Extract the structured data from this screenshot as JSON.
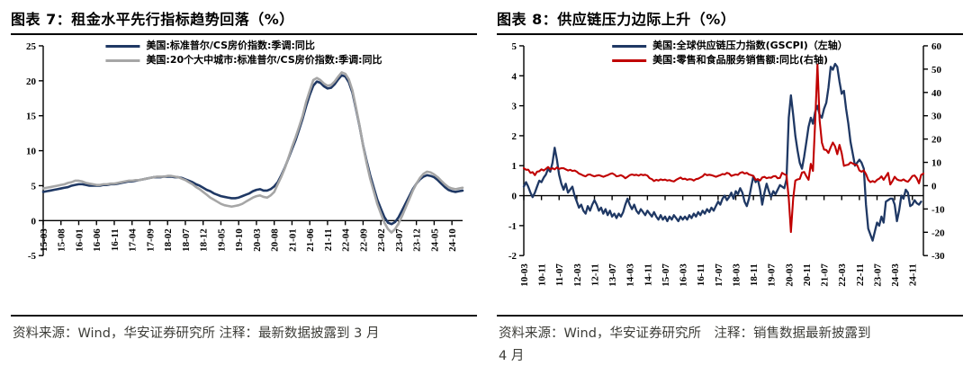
{
  "figure7": {
    "title": "图表 7：租金水平先行指标趋势回落（%）",
    "source_lines": [
      "资料来源：Wind，华安证券研究所  注释：最新数据披露到 3 月"
    ]
  },
  "figure8": {
    "title": "图表 8：供应链压力边际上升（%）",
    "source_lines": [
      "资料来源：Wind，华安证券研究所　注释：销售数据最新披露到",
      "4 月"
    ]
  },
  "chart_data": [
    {
      "type": "line",
      "title": "图表 7：租金水平先行指标趋势回落（%）",
      "x_start": "2015-03",
      "x_end": "2025-01",
      "freq": "monthly",
      "x_tick_every": 5,
      "x_tick_labels": [
        "15-03",
        "15-08",
        "16-01",
        "16-06",
        "16-11",
        "17-04",
        "17-09",
        "18-02",
        "18-07",
        "18-12",
        "19-05",
        "19-10",
        "20-03",
        "20-08",
        "21-01",
        "21-06",
        "21-11",
        "22-04",
        "22-09",
        "23-02",
        "23-07",
        "23-12",
        "24-05",
        "24-10"
      ],
      "left_axis": {
        "min": -5,
        "max": 25,
        "step": 5
      },
      "grid": false,
      "legend_position": "top-center",
      "series": [
        {
          "name": "美国:标准普尔/CS房价指数:季调:同比",
          "axis": "left",
          "color": "#1f3864",
          "values": [
            4.1,
            4.2,
            4.3,
            4.4,
            4.5,
            4.6,
            4.7,
            4.8,
            5.0,
            5.1,
            5.2,
            5.2,
            5.1,
            5.0,
            5.0,
            5.0,
            5.0,
            5.1,
            5.1,
            5.2,
            5.2,
            5.3,
            5.4,
            5.5,
            5.6,
            5.6,
            5.7,
            5.8,
            5.9,
            6.0,
            6.1,
            6.2,
            6.2,
            6.2,
            6.3,
            6.3,
            6.3,
            6.2,
            6.2,
            6.1,
            5.9,
            5.7,
            5.5,
            5.2,
            5.0,
            4.7,
            4.4,
            4.2,
            3.9,
            3.7,
            3.5,
            3.4,
            3.3,
            3.2,
            3.2,
            3.3,
            3.5,
            3.7,
            3.9,
            4.2,
            4.4,
            4.5,
            4.3,
            4.3,
            4.5,
            4.9,
            5.5,
            6.5,
            7.6,
            8.9,
            10.2,
            11.5,
            13.0,
            14.6,
            16.4,
            18.0,
            19.3,
            19.9,
            19.7,
            19.2,
            18.9,
            19.0,
            19.5,
            20.2,
            20.8,
            20.6,
            19.8,
            18.3,
            16.0,
            13.5,
            10.8,
            8.5,
            6.5,
            4.7,
            3.0,
            1.7,
            0.5,
            -0.3,
            -0.5,
            -0.2,
            0.5,
            1.5,
            2.5,
            3.5,
            4.5,
            5.3,
            5.9,
            6.3,
            6.5,
            6.4,
            6.2,
            5.8,
            5.3,
            4.8,
            4.4,
            4.2,
            4.1,
            4.2,
            4.3
          ]
        },
        {
          "name": "美国:20个大中城市:标准普尔/CS房价指数:季调:同比",
          "axis": "left",
          "color": "#a6a6a6",
          "values": [
            4.6,
            4.7,
            4.8,
            4.9,
            5.0,
            5.1,
            5.2,
            5.4,
            5.5,
            5.7,
            5.7,
            5.6,
            5.4,
            5.3,
            5.2,
            5.1,
            5.1,
            5.2,
            5.2,
            5.3,
            5.3,
            5.4,
            5.5,
            5.6,
            5.7,
            5.7,
            5.8,
            5.8,
            5.9,
            6.0,
            6.1,
            6.2,
            6.3,
            6.3,
            6.3,
            6.4,
            6.4,
            6.3,
            6.2,
            6.0,
            5.8,
            5.5,
            5.2,
            4.8,
            4.5,
            4.1,
            3.7,
            3.3,
            3.0,
            2.7,
            2.4,
            2.2,
            2.1,
            2.0,
            2.1,
            2.2,
            2.4,
            2.7,
            3.0,
            3.3,
            3.5,
            3.6,
            3.4,
            3.3,
            3.6,
            4.1,
            5.2,
            6.3,
            7.5,
            9.0,
            10.5,
            11.9,
            13.4,
            15.0,
            17.0,
            18.6,
            20.1,
            20.4,
            20.1,
            19.6,
            19.3,
            19.4,
            19.9,
            20.6,
            21.2,
            21.0,
            20.2,
            18.6,
            16.2,
            13.6,
            10.7,
            8.2,
            6.0,
            4.2,
            2.4,
            1.0,
            -0.3,
            -1.2,
            -1.7,
            -1.2,
            -0.4,
            0.7,
            1.9,
            3.1,
            4.3,
            5.3,
            6.1,
            6.7,
            7.0,
            6.9,
            6.6,
            6.2,
            5.7,
            5.2,
            4.8,
            4.6,
            4.5,
            4.6,
            4.7
          ]
        }
      ]
    },
    {
      "type": "line",
      "title": "图表 8：供应链压力边际上升（%）",
      "x_start": "2010-03",
      "x_end": "2025-04",
      "freq": "monthly",
      "x_tick_every": 8,
      "x_tick_labels": [
        "10-03",
        "10-11",
        "11-07",
        "12-03",
        "12-11",
        "13-07",
        "14-03",
        "14-11",
        "15-07",
        "16-03",
        "16-11",
        "17-07",
        "18-03",
        "18-11",
        "19-07",
        "20-03",
        "20-11",
        "21-07",
        "22-03",
        "22-11",
        "23-07",
        "24-03",
        "24-11"
      ],
      "left_axis": {
        "min": -2,
        "max": 5,
        "step": 1
      },
      "right_axis": {
        "min": -30,
        "max": 60,
        "step": 10
      },
      "grid": false,
      "legend_position": "top-center",
      "series": [
        {
          "name": "美国:全球供应链压力指数(GSCPI)（左轴）",
          "axis": "left",
          "color": "#1f3864",
          "values": [
            0.3,
            0.45,
            0.3,
            0.1,
            -0.05,
            0.1,
            0.3,
            0.5,
            0.45,
            0.6,
            0.7,
            0.9,
            0.8,
            1.1,
            1.6,
            1.2,
            0.7,
            0.4,
            0.2,
            0.4,
            0.1,
            0.2,
            0.3,
            0.0,
            -0.2,
            -0.4,
            -0.3,
            -0.5,
            -0.6,
            -0.35,
            -0.5,
            -0.3,
            -0.15,
            -0.3,
            -0.5,
            -0.4,
            -0.6,
            -0.45,
            -0.65,
            -0.5,
            -0.7,
            -0.6,
            -0.75,
            -0.6,
            -0.7,
            -0.55,
            -0.3,
            -0.1,
            -0.3,
            -0.45,
            -0.3,
            -0.5,
            -0.6,
            -0.45,
            -0.55,
            -0.65,
            -0.5,
            -0.6,
            -0.7,
            -0.55,
            -0.7,
            -0.8,
            -0.65,
            -0.8,
            -0.7,
            -0.85,
            -0.7,
            -0.8,
            -0.65,
            -0.75,
            -0.85,
            -0.7,
            -0.8,
            -0.7,
            -0.8,
            -0.65,
            -0.75,
            -0.6,
            -0.7,
            -0.55,
            -0.65,
            -0.5,
            -0.6,
            -0.45,
            -0.55,
            -0.4,
            -0.5,
            -0.35,
            -0.2,
            -0.3,
            -0.1,
            0.0,
            -0.15,
            -0.05,
            0.1,
            -0.1,
            0.15,
            0.05,
            0.25,
            0.1,
            -0.2,
            -0.35,
            -0.1,
            0.3,
            0.65,
            0.45,
            0.55,
            0.2,
            -0.3,
            0.1,
            0.4,
            0.15,
            -0.05,
            0.15,
            0.05,
            0.2,
            0.35,
            0.3,
            0.25,
            0.55,
            2.6,
            3.35,
            2.7,
            2.0,
            1.5,
            1.1,
            0.9,
            1.3,
            1.8,
            2.3,
            2.6,
            2.4,
            2.8,
            3.0,
            2.7,
            2.6,
            2.9,
            3.1,
            3.6,
            4.3,
            4.2,
            4.4,
            4.3,
            3.8,
            3.4,
            3.5,
            2.9,
            2.4,
            1.8,
            1.4,
            1.0,
            1.1,
            1.2,
            1.1,
            0.9,
            -0.3,
            -1.1,
            -1.3,
            -1.5,
            -1.2,
            -0.9,
            -1.0,
            -0.7,
            -0.9,
            -0.2,
            -0.15,
            -0.1,
            -0.1,
            -0.3,
            -0.85,
            -0.5,
            0.0,
            -0.1,
            0.2,
            0.1,
            -0.35,
            -0.3,
            -0.15,
            -0.25,
            -0.3,
            -0.2,
            null
          ]
        },
        {
          "name": "美国:零售和食品服务销售额:同比(右轴)",
          "axis": "right",
          "color": "#c00000",
          "values": [
            7.5,
            6.8,
            6.9,
            5.5,
            5.8,
            4.5,
            6.0,
            6.2,
            7.0,
            6.5,
            7.2,
            8.0,
            7.0,
            7.5,
            7.0,
            7.8,
            7.2,
            7.5,
            7.5,
            7.0,
            6.5,
            6.8,
            6.3,
            6.5,
            6.0,
            5.2,
            4.8,
            4.3,
            4.0,
            4.7,
            4.8,
            4.3,
            4.0,
            4.3,
            4.5,
            4.2,
            3.8,
            4.2,
            4.5,
            5.0,
            5.3,
            4.8,
            4.0,
            4.2,
            4.5,
            4.0,
            3.2,
            3.8,
            4.5,
            4.8,
            4.5,
            4.7,
            4.3,
            4.8,
            4.5,
            4.7,
            4.3,
            3.2,
            2.8,
            2.0,
            2.5,
            2.2,
            2.7,
            2.4,
            2.6,
            2.2,
            2.4,
            2.0,
            1.8,
            2.5,
            3.0,
            3.5,
            2.8,
            3.0,
            2.5,
            2.8,
            2.7,
            2.2,
            2.8,
            3.0,
            3.5,
            4.0,
            5.0,
            4.5,
            4.7,
            4.5,
            4.2,
            3.8,
            4.2,
            4.5,
            5.0,
            4.8,
            5.5,
            5.2,
            4.2,
            4.5,
            4.8,
            4.6,
            5.5,
            5.8,
            5.2,
            5.5,
            4.8,
            4.5,
            4.2,
            2.5,
            2.8,
            2.2,
            3.5,
            3.8,
            3.2,
            3.5,
            3.4,
            4.0,
            4.1,
            3.2,
            3.3,
            5.5,
            4.9,
            4.5,
            -5.5,
            -19.9,
            -5.6,
            2.2,
            2.7,
            2.9,
            5.6,
            5.9,
            4.0,
            2.5,
            9.4,
            6.3,
            28.0,
            52.0,
            28.0,
            18.5,
            15.5,
            15.3,
            14.0,
            16.5,
            18.5,
            16.8,
            13.5,
            17.5,
            14.0,
            8.5,
            8.8,
            9.0,
            10.0,
            9.5,
            9.0,
            8.8,
            6.5,
            6.0,
            6.5,
            5.0,
            2.5,
            1.5,
            2.0,
            1.5,
            2.5,
            3.0,
            4.0,
            2.5,
            4.0,
            5.5,
            0.5,
            2.0,
            3.8,
            2.7,
            2.3,
            2.2,
            2.7,
            2.0,
            1.7,
            2.8,
            4.1,
            4.4,
            3.2,
            1.0,
            4.6,
            5.2
          ]
        }
      ]
    }
  ]
}
